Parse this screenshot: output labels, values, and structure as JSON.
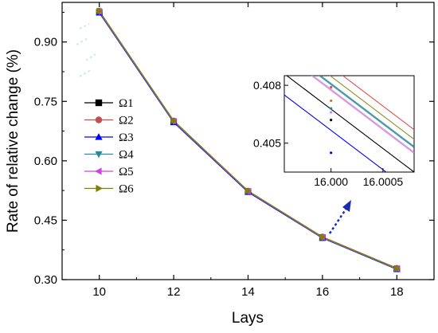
{
  "chart_data": [
    {
      "type": "line",
      "title": "",
      "xlabel": "Lays",
      "ylabel": "Rate of relative change (%)",
      "x": [
        10,
        12,
        14,
        16,
        18
      ],
      "x_ticks": [
        10,
        12,
        14,
        16,
        18
      ],
      "y_ticks": [
        0.3,
        0.45,
        0.6,
        0.75,
        0.9
      ],
      "y_tick_labels": [
        "0.30",
        "0.45",
        "0.60",
        "0.75",
        "0.90"
      ],
      "xlim": [
        9,
        19
      ],
      "ylim": [
        0.3,
        1.0
      ],
      "grid": false,
      "legend": "left-middle",
      "series": [
        {
          "name": "Ω1",
          "color": "#000000",
          "marker": "square",
          "values": [
            0.975,
            0.698,
            0.522,
            0.406,
            0.327
          ]
        },
        {
          "name": "Ω2",
          "color": "#c0504d",
          "marker": "circle",
          "values": [
            0.978,
            0.701,
            0.524,
            0.408,
            0.329
          ]
        },
        {
          "name": "Ω3",
          "color": "#0000ff",
          "marker": "triangle-up",
          "values": [
            0.974,
            0.697,
            0.521,
            0.405,
            0.326
          ]
        },
        {
          "name": "Ω4",
          "color": "#2a8a9a",
          "marker": "triangle-down",
          "values": [
            0.976,
            0.699,
            0.523,
            0.406,
            0.327
          ]
        },
        {
          "name": "Ω5",
          "color": "#cc44dd",
          "marker": "triangle-left",
          "values": [
            0.977,
            0.7,
            0.523,
            0.407,
            0.328
          ]
        },
        {
          "name": "Ω6",
          "color": "#808000",
          "marker": "triangle-right",
          "values": [
            0.978,
            0.701,
            0.524,
            0.407,
            0.328
          ]
        }
      ]
    },
    {
      "type": "line",
      "title": "",
      "x_ticks": [
        16.0,
        16.0005
      ],
      "x_tick_labels": [
        "16.000",
        "16.0005"
      ],
      "y_ticks": [
        0.405,
        0.408
      ],
      "y_tick_labels": [
        "0.405",
        "0.408"
      ],
      "xlim": [
        15.99955,
        16.0008
      ],
      "ylim": [
        0.4035,
        0.4085
      ],
      "grid": false,
      "series": [
        {
          "name": "Ω1",
          "color": "#000000",
          "x": [
            15.99955,
            16.0008
          ],
          "values": [
            0.4086,
            0.4035
          ],
          "marker_point": [
            16.0,
            0.4062
          ]
        },
        {
          "name": "Ω2",
          "color": "#e0504a",
          "x": [
            15.99955,
            16.0008
          ],
          "values": [
            0.4108,
            0.4057
          ],
          "marker_point": [
            16.0,
            0.4079
          ]
        },
        {
          "name": "Ω3",
          "color": "#0000ff",
          "x": [
            15.99955,
            16.0008
          ],
          "values": [
            0.4075,
            0.4024
          ],
          "marker_point": [
            16.0,
            0.4045
          ]
        },
        {
          "name": "Ω4",
          "color": "#2a8a9a",
          "x": [
            15.99955,
            16.0008
          ],
          "values": [
            0.4099,
            0.4048
          ],
          "marker_point": [
            16.0,
            0.4068
          ]
        },
        {
          "name": "Ω5",
          "color": "#cc88dd",
          "x": [
            15.99955,
            16.0008
          ],
          "values": [
            0.4096,
            0.4045
          ],
          "marker_point": [
            16.0,
            0.4066
          ]
        },
        {
          "name": "Ω6",
          "color": "#909020",
          "x": [
            15.99955,
            16.0008
          ],
          "values": [
            0.4103,
            0.4052
          ],
          "marker_point": [
            16.0,
            0.4072
          ]
        }
      ]
    }
  ]
}
